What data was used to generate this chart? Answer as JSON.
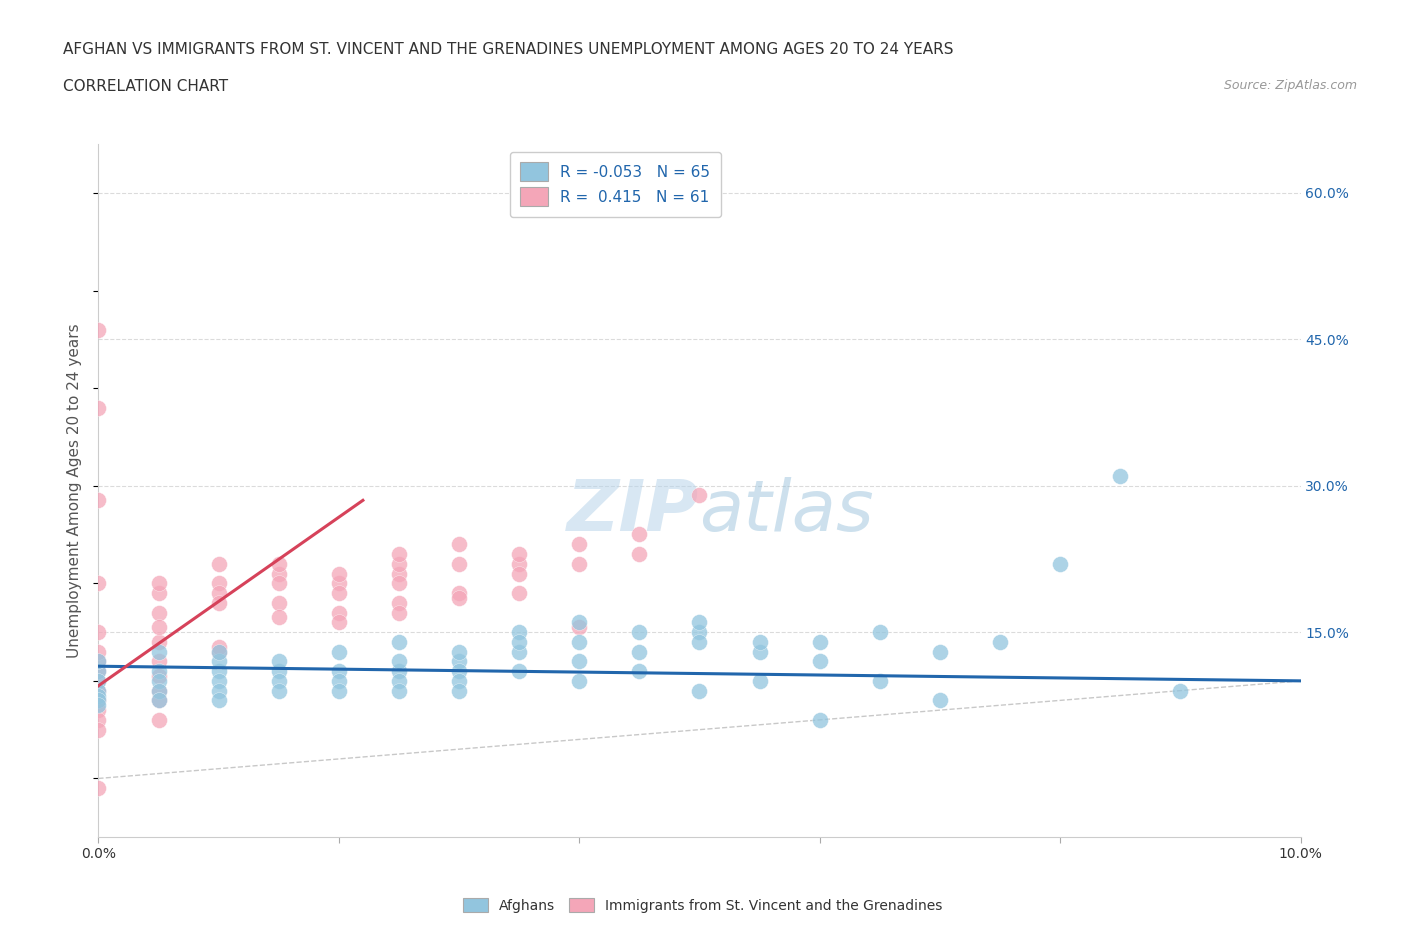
{
  "title_line1": "AFGHAN VS IMMIGRANTS FROM ST. VINCENT AND THE GRENADINES UNEMPLOYMENT AMONG AGES 20 TO 24 YEARS",
  "title_line2": "CORRELATION CHART",
  "source": "Source: ZipAtlas.com",
  "ylabel": "Unemployment Among Ages 20 to 24 years",
  "xlim": [
    0.0,
    0.1
  ],
  "ylim": [
    -0.06,
    0.65
  ],
  "blue_color": "#92c5de",
  "pink_color": "#f4a6b8",
  "blue_line_color": "#2166ac",
  "pink_line_color": "#d6425a",
  "grid_color": "#cccccc",
  "watermark": "ZIPatlas",
  "blue_dots_x": [
    0.0,
    0.0,
    0.0,
    0.0,
    0.0,
    0.0,
    0.0,
    0.005,
    0.005,
    0.005,
    0.005,
    0.005,
    0.01,
    0.01,
    0.01,
    0.01,
    0.01,
    0.01,
    0.015,
    0.015,
    0.015,
    0.015,
    0.02,
    0.02,
    0.02,
    0.02,
    0.025,
    0.025,
    0.025,
    0.025,
    0.025,
    0.03,
    0.03,
    0.03,
    0.03,
    0.03,
    0.035,
    0.035,
    0.035,
    0.035,
    0.04,
    0.04,
    0.04,
    0.04,
    0.045,
    0.045,
    0.045,
    0.05,
    0.05,
    0.05,
    0.05,
    0.055,
    0.055,
    0.055,
    0.06,
    0.06,
    0.06,
    0.065,
    0.065,
    0.07,
    0.07,
    0.075,
    0.08,
    0.085,
    0.09
  ],
  "blue_dots_y": [
    0.11,
    0.12,
    0.1,
    0.09,
    0.085,
    0.08,
    0.075,
    0.11,
    0.1,
    0.09,
    0.13,
    0.08,
    0.11,
    0.12,
    0.1,
    0.09,
    0.08,
    0.13,
    0.11,
    0.1,
    0.09,
    0.12,
    0.11,
    0.1,
    0.13,
    0.09,
    0.11,
    0.12,
    0.1,
    0.14,
    0.09,
    0.12,
    0.11,
    0.1,
    0.13,
    0.09,
    0.15,
    0.13,
    0.11,
    0.14,
    0.16,
    0.14,
    0.12,
    0.1,
    0.15,
    0.13,
    0.11,
    0.15,
    0.16,
    0.14,
    0.09,
    0.13,
    0.14,
    0.1,
    0.14,
    0.12,
    0.06,
    0.15,
    0.1,
    0.13,
    0.08,
    0.14,
    0.22,
    0.31,
    0.09
  ],
  "pink_dots_x": [
    0.0,
    0.0,
    0.0,
    0.0,
    0.0,
    0.0,
    0.0,
    0.0,
    0.0,
    0.0,
    0.0,
    0.0,
    0.005,
    0.005,
    0.005,
    0.005,
    0.005,
    0.005,
    0.005,
    0.005,
    0.01,
    0.01,
    0.01,
    0.01,
    0.01,
    0.015,
    0.015,
    0.015,
    0.015,
    0.02,
    0.02,
    0.02,
    0.02,
    0.025,
    0.025,
    0.025,
    0.025,
    0.025,
    0.03,
    0.03,
    0.03,
    0.035,
    0.035,
    0.035,
    0.04,
    0.04,
    0.045,
    0.045,
    0.05,
    0.01,
    0.015,
    0.02,
    0.025,
    0.03,
    0.035,
    0.04,
    0.0,
    0.005,
    0.0,
    0.0,
    0.005
  ],
  "pink_dots_y": [
    0.11,
    0.12,
    0.13,
    0.1,
    0.09,
    0.08,
    0.07,
    0.06,
    0.15,
    0.2,
    0.285,
    0.38,
    0.19,
    0.2,
    0.17,
    0.14,
    0.12,
    0.09,
    0.08,
    0.06,
    0.2,
    0.19,
    0.18,
    0.13,
    0.22,
    0.21,
    0.2,
    0.18,
    0.22,
    0.2,
    0.21,
    0.19,
    0.17,
    0.21,
    0.22,
    0.2,
    0.18,
    0.23,
    0.22,
    0.24,
    0.19,
    0.22,
    0.23,
    0.21,
    0.24,
    0.22,
    0.25,
    0.23,
    0.29,
    0.135,
    0.165,
    0.16,
    0.17,
    0.185,
    0.19,
    0.155,
    0.05,
    0.105,
    -0.01,
    0.46,
    0.155
  ],
  "blue_trend_x": [
    0.0,
    0.1
  ],
  "blue_trend_y": [
    0.115,
    0.1
  ],
  "pink_trend_x": [
    0.0,
    0.022
  ],
  "pink_trend_y": [
    0.095,
    0.285
  ]
}
